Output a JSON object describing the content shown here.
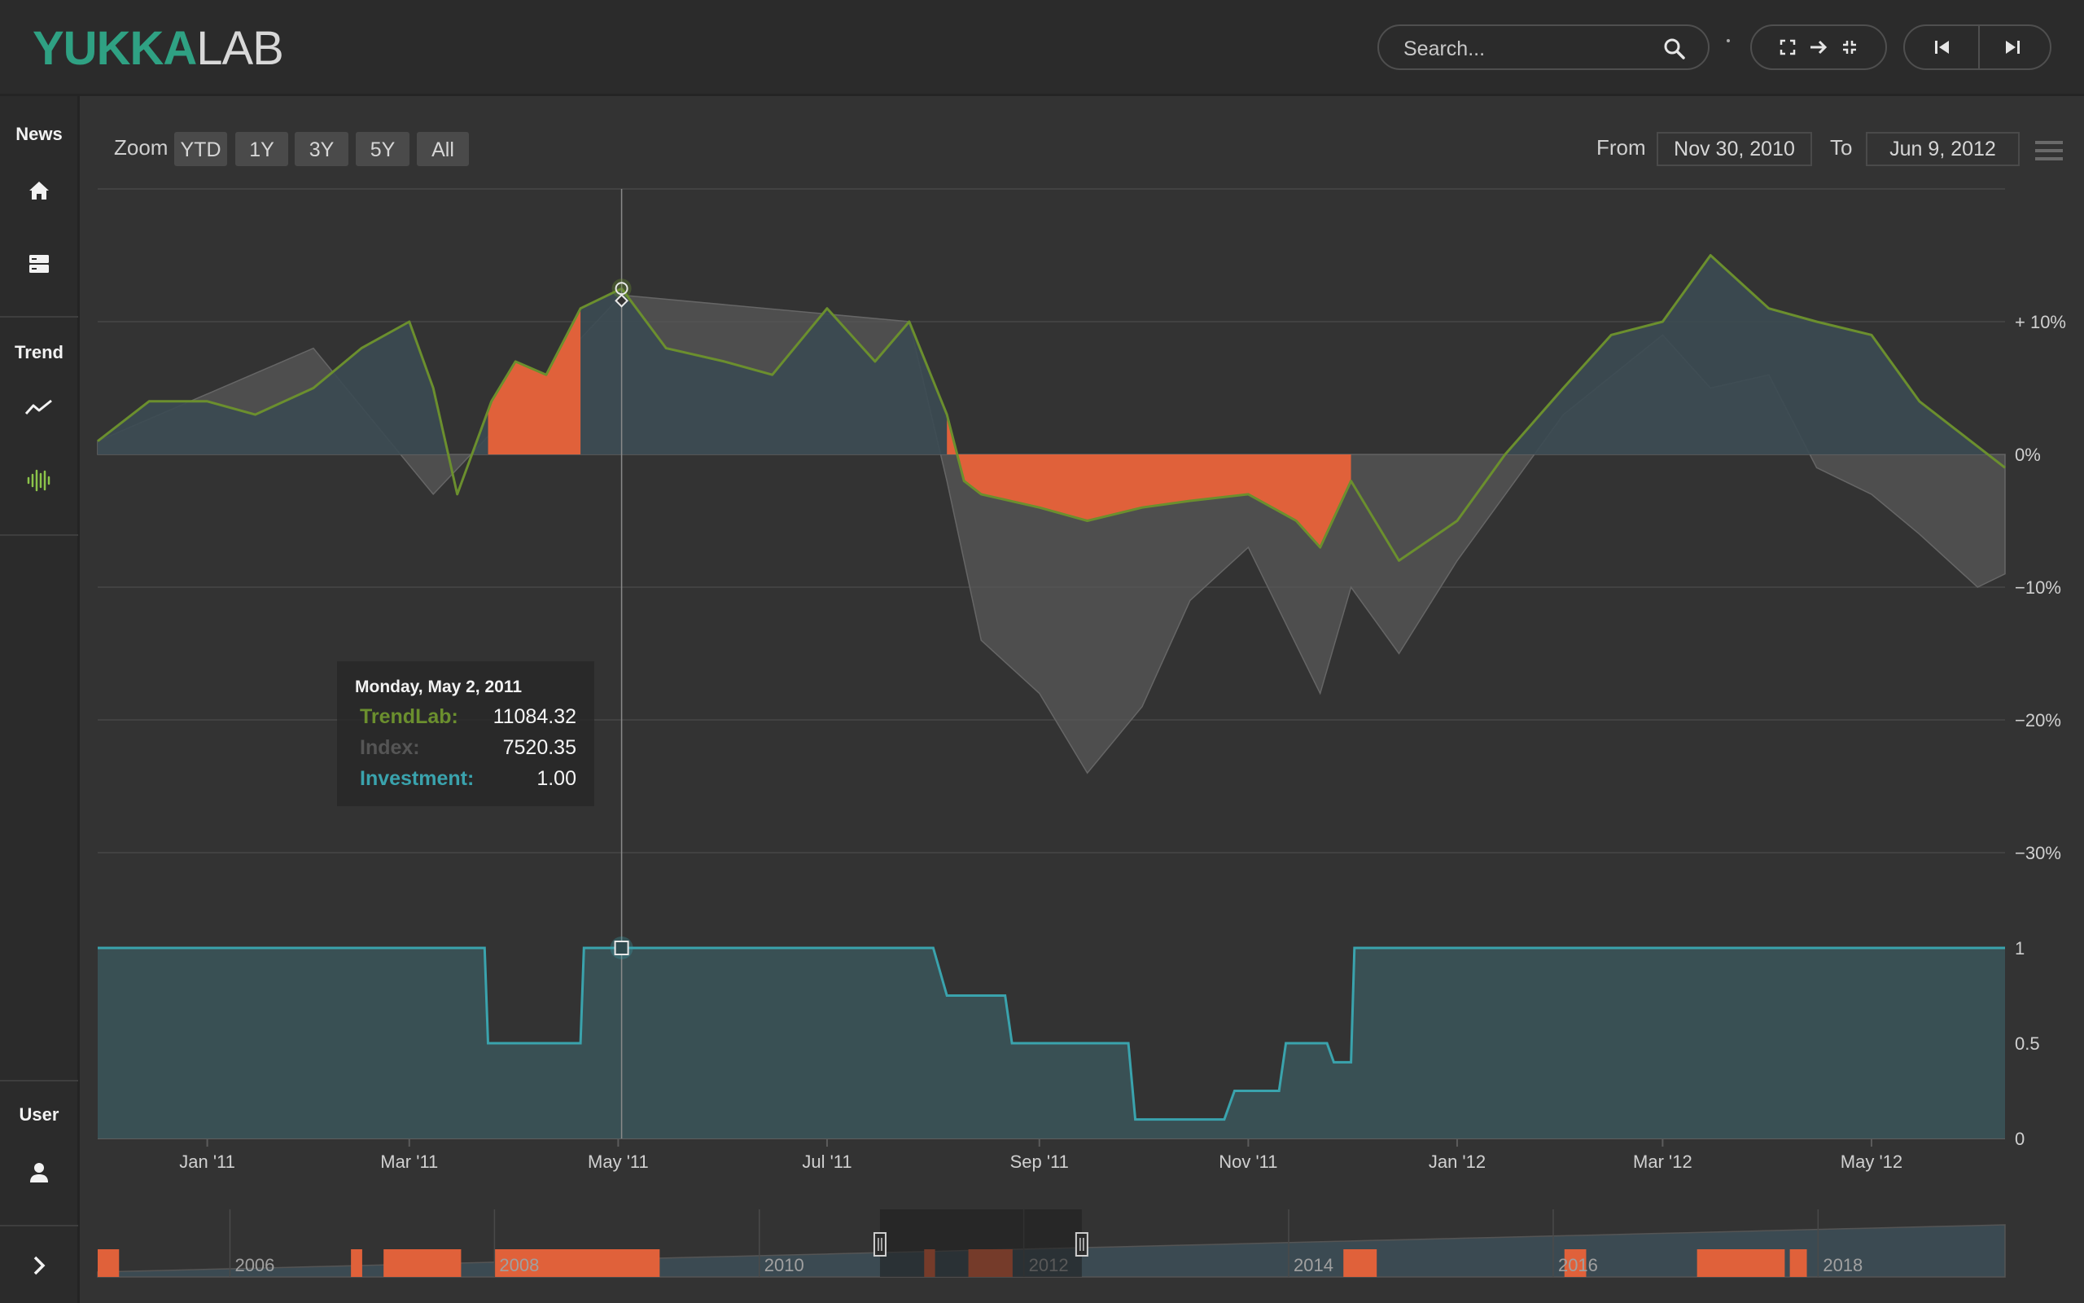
{
  "app": {
    "logo_part1": "YUKKA",
    "logo_part2": "LAB"
  },
  "header": {
    "search_placeholder": "Search...",
    "icons": [
      "search-icon",
      "fullscreen-icon",
      "arrow-right-icon",
      "collapse-icon",
      "skip-back-icon",
      "skip-forward-icon"
    ]
  },
  "sidebar": {
    "sections": [
      {
        "label": "News",
        "items": [
          "home-icon",
          "server-icon"
        ]
      },
      {
        "label": "Trend",
        "items": [
          "trend-line-icon",
          "signal-icon"
        ]
      },
      {
        "label": "User",
        "items": [
          "user-icon"
        ]
      }
    ],
    "expand_icon": "chevron-right-icon",
    "active_icon": "signal-icon"
  },
  "range_selector": {
    "zoom_label": "Zoom",
    "buttons": [
      "YTD",
      "1Y",
      "3Y",
      "5Y",
      "All"
    ],
    "from_label": "From",
    "from_value": "Nov 30, 2010",
    "to_label": "To",
    "to_value": "Jun 9, 2012"
  },
  "tooltip": {
    "date": "Monday, May 2, 2011",
    "rows": [
      {
        "label": "TrendLab:",
        "value": "11084.32",
        "color": "#6b8f2e"
      },
      {
        "label": "Index:",
        "value": "7520.35",
        "color": "#555555"
      },
      {
        "label": "Investment:",
        "value": "1.00",
        "color": "#3aa3ad"
      }
    ]
  },
  "colors": {
    "trendlab": "#6b8f2e",
    "index": "#555555",
    "investment": "#3aa3ad",
    "drawdown": "#e0613a",
    "area_positive": "#3b4a52"
  },
  "chart_data": {
    "type": "area",
    "x_axis_ticks": [
      "Jan '11",
      "Mar '11",
      "May '11",
      "Jul '11",
      "Sep '11",
      "Nov '11",
      "Jan '12",
      "Mar '12",
      "May '12"
    ],
    "x_range": [
      "2010-11-30",
      "2012-06-09"
    ],
    "upper_axis_ticks": [
      "+ 10%",
      "0%",
      "−10%",
      "−20%",
      "−30%"
    ],
    "upper_ylim": [
      -30,
      20
    ],
    "lower_axis_ticks": [
      "1",
      "0.5",
      "0"
    ],
    "lower_ylim": [
      0,
      1
    ],
    "grid": true,
    "crosshair_date": "2011-05-02",
    "series": [
      {
        "name": "TrendLab",
        "unit": "%",
        "x": [
          "2010-11-30",
          "2010-12-15",
          "2011-01-01",
          "2011-01-15",
          "2011-02-01",
          "2011-02-15",
          "2011-03-01",
          "2011-03-08",
          "2011-03-15",
          "2011-03-25",
          "2011-04-01",
          "2011-04-10",
          "2011-04-20",
          "2011-05-02",
          "2011-05-15",
          "2011-06-01",
          "2011-06-15",
          "2011-07-01",
          "2011-07-15",
          "2011-07-25",
          "2011-08-05",
          "2011-08-10",
          "2011-08-15",
          "2011-09-01",
          "2011-09-15",
          "2011-10-01",
          "2011-10-15",
          "2011-11-01",
          "2011-11-15",
          "2011-11-22",
          "2011-12-01",
          "2011-12-15",
          "2012-01-01",
          "2012-01-15",
          "2012-02-01",
          "2012-02-15",
          "2012-03-01",
          "2012-03-15",
          "2012-04-01",
          "2012-04-15",
          "2012-05-01",
          "2012-05-15",
          "2012-05-25",
          "2012-06-09"
        ],
        "y": [
          1,
          4,
          4,
          3,
          5,
          8,
          10,
          5,
          -3,
          4,
          7,
          6,
          11,
          12.5,
          8,
          7,
          6,
          11,
          7,
          10,
          3,
          -2,
          -3,
          -4,
          -5,
          -4,
          -3.5,
          -3,
          -5,
          -7,
          -2,
          -8,
          -5,
          0,
          5,
          9,
          10,
          15,
          11,
          10,
          9,
          4,
          2,
          -1
        ]
      },
      {
        "name": "Index",
        "unit": "%",
        "x": [
          "2010-11-30",
          "2011-02-01",
          "2011-03-08",
          "2011-05-02",
          "2011-07-25",
          "2011-08-05",
          "2011-08-15",
          "2011-09-01",
          "2011-09-15",
          "2011-10-01",
          "2011-10-15",
          "2011-11-01",
          "2011-11-22",
          "2011-12-01",
          "2011-12-15",
          "2012-01-01",
          "2012-02-01",
          "2012-03-01",
          "2012-03-15",
          "2012-04-01",
          "2012-04-15",
          "2012-05-01",
          "2012-05-15",
          "2012-06-01",
          "2012-06-09"
        ],
        "y": [
          1,
          8,
          -3,
          12,
          10,
          -2,
          -14,
          -18,
          -24,
          -19,
          -11,
          -7,
          -18,
          -10,
          -15,
          -8,
          3,
          9,
          5,
          6,
          -1,
          -3,
          -6,
          -10,
          -9
        ]
      },
      {
        "name": "Investment",
        "x": [
          "2010-11-30",
          "2011-03-23",
          "2011-03-24",
          "2011-04-20",
          "2011-04-21",
          "2011-08-01",
          "2011-08-05",
          "2011-08-22",
          "2011-08-24",
          "2011-09-27",
          "2011-09-29",
          "2011-10-25",
          "2011-10-28",
          "2011-11-10",
          "2011-11-12",
          "2011-11-24",
          "2011-11-26",
          "2011-12-01",
          "2011-12-02",
          "2012-06-09"
        ],
        "y": [
          1,
          1,
          0.5,
          0.5,
          1,
          1,
          0.75,
          0.75,
          0.5,
          0.5,
          0.1,
          0.1,
          0.25,
          0.25,
          0.5,
          0.5,
          0.4,
          0.4,
          1,
          1
        ]
      }
    ],
    "drawdown_periods": [
      [
        "2011-03-24",
        "2011-04-20"
      ],
      [
        "2011-08-05",
        "2011-12-01"
      ]
    ],
    "navigator": {
      "ticks": [
        "2006",
        "2008",
        "2010",
        "2012",
        "2014",
        "2016",
        "2018"
      ],
      "range": [
        "2005-01-01",
        "2019-06-01"
      ],
      "selected": [
        "2010-11-30",
        "2012-06-09"
      ],
      "drawdown_periods": [
        [
          "2005-01-01",
          "2005-03-01"
        ],
        [
          "2006-12-01",
          "2007-01-01"
        ],
        [
          "2007-03-01",
          "2007-10-01"
        ],
        [
          "2008-01-01",
          "2009-04-01"
        ],
        [
          "2011-04-01",
          "2011-05-01"
        ],
        [
          "2011-08-01",
          "2011-12-01"
        ],
        [
          "2014-06-01",
          "2014-09-01"
        ],
        [
          "2016-02-01",
          "2016-04-01"
        ],
        [
          "2017-02-01",
          "2017-10-01"
        ],
        [
          "2017-10-15",
          "2017-12-01"
        ]
      ]
    }
  }
}
